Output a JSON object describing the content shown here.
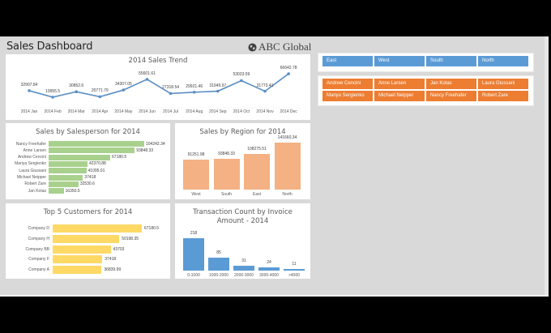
{
  "header": {
    "title": "Sales Dashboard",
    "brand": "ABC Global",
    "brand_icon": "globe-icon"
  },
  "colors": {
    "line": "#5b8fc4",
    "salesperson_bar": "#a9d18e",
    "region_bar": "#f4b183",
    "customer_bar": "#ffd966",
    "invoice_bar": "#5b9bd5",
    "slicer_region": "#5b9bd5",
    "slicer_person": "#ed7d31"
  },
  "slicers": {
    "region": [
      "East",
      "West",
      "South",
      "North"
    ],
    "salesperson": [
      "Andrew Cencini",
      "Anne Larsen",
      "Jan Kotas",
      "Laura Giussani",
      "Mariya Sergienko",
      "Michael Neipper",
      "Nancy Freehafer",
      "Robert Zare"
    ]
  },
  "chart_data": [
    {
      "type": "line",
      "title": "2014 Sales Trend",
      "categories": [
        "2014 Jan",
        "2014 Feb",
        "2014 Mar",
        "2014 Apr",
        "2014 May",
        "2014 Jun",
        "2014 Jul",
        "2014 Aug",
        "2014 Sep",
        "2014 Oct",
        "2014 Nov",
        "2014 Dec"
      ],
      "values": [
        32907.84,
        19955.5,
        30852.6,
        20771.79,
        34307.05,
        55601.61,
        27318.54,
        29921.46,
        31949.97,
        53033.59,
        31773.41,
        66642.78
      ],
      "labels": [
        "32907.84",
        "19955.5",
        "30852.6",
        "20771.79",
        "34307.05",
        "55601.61",
        "27318.54",
        "29921.46",
        "31949.97",
        "53033.59",
        "31773.41",
        "66642.78"
      ],
      "xlabel": "",
      "ylabel": "",
      "grid": false
    },
    {
      "type": "bar",
      "orientation": "horizontal",
      "title": "Sales by Salesperson for 2014",
      "categories": [
        "Nancy Freehafer",
        "Anne Larsen",
        "Andrew Cencini",
        "Mariya Sergienko",
        "Laura Giussani",
        "Michael Neipper",
        "Robert Zare",
        "Jan Kotas"
      ],
      "values": [
        104242.34,
        93848.33,
        67180.5,
        42370.88,
        41095.01,
        37418,
        32530.6,
        16350.5
      ],
      "labels": [
        "104242.34",
        "93848.33",
        "67180.5",
        "42370.88",
        "41095.01",
        "37418",
        "32530.6",
        "16350.5"
      ]
    },
    {
      "type": "bar",
      "title": "Sales by Region for 2014",
      "categories": [
        "West",
        "South",
        "East",
        "North"
      ],
      "values": [
        91251.98,
        93848.33,
        108275.51,
        141660.34
      ],
      "labels": [
        "91251.98",
        "93848.33",
        "108275.51",
        "141660.34"
      ]
    },
    {
      "type": "bar",
      "orientation": "horizontal",
      "title": "Top 5 Customers for 2014",
      "categories": [
        "Company D",
        "Company H",
        "Company BB",
        "Company F",
        "Company A"
      ],
      "values": [
        67180.5,
        50198.35,
        43703,
        37418,
        36839.99
      ],
      "labels": [
        "67180.5",
        "50198.35",
        "43703",
        "37418",
        "36839.99"
      ]
    },
    {
      "type": "bar",
      "title": "Transaction Count by Invoice Amount - 2014",
      "title_lines": [
        "Transaction Count by Invoice",
        "Amount - 2014"
      ],
      "categories": [
        "0-1000",
        "1000-2000",
        "2000-3000",
        "3000-4000",
        ">4000"
      ],
      "values": [
        218,
        85,
        31,
        24,
        11
      ],
      "labels": [
        "218",
        "85",
        "31",
        "24",
        "11"
      ]
    }
  ]
}
